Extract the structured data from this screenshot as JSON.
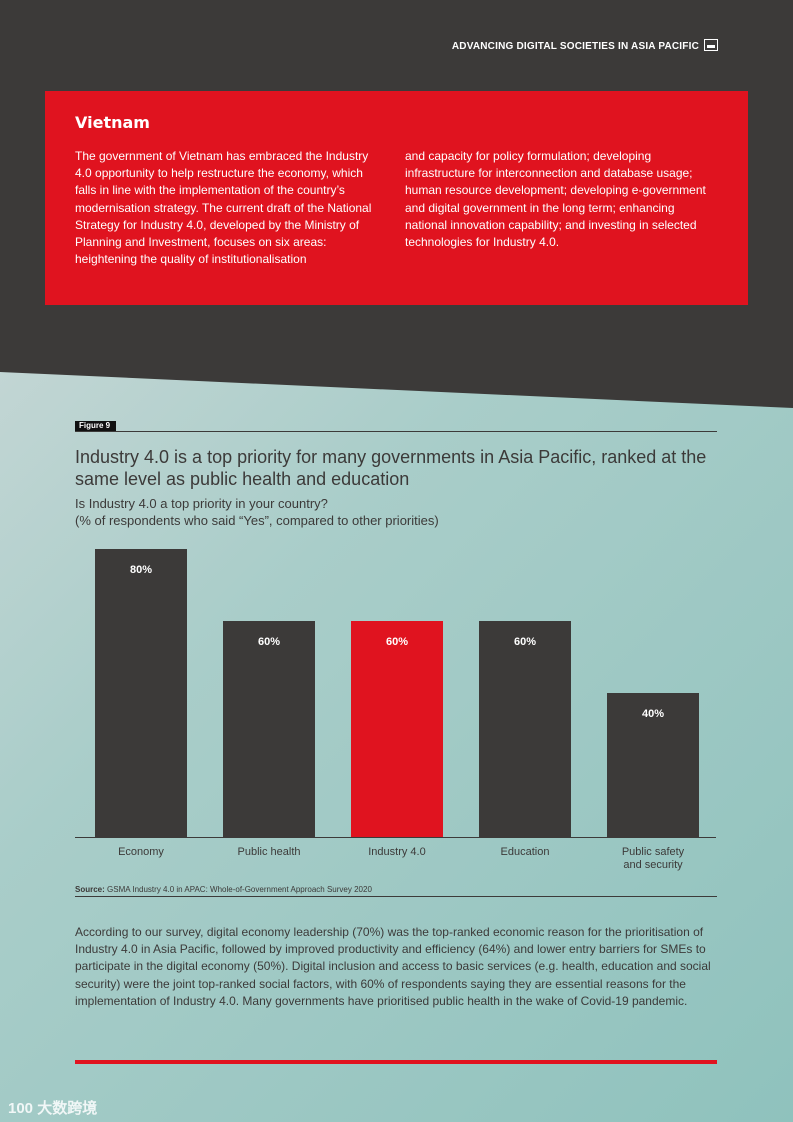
{
  "header": {
    "running_title": "ADVANCING DIGITAL SOCIETIES IN ASIA PACIFIC",
    "icon": "building-icon"
  },
  "callout": {
    "title": "Vietnam",
    "paragraph_left": "The government of Vietnam has embraced the Industry 4.0 opportunity to help restructure the economy, which falls in line with the implementation of the country’s modernisation strategy. The current draft of the National Strategy for Industry 4.0, developed by the Ministry of Planning and Investment, focuses on six areas: heightening the quality of institutionalisation",
    "paragraph_right": "and capacity for policy formulation; developing infrastructure for interconnection and database usage; human resource development; developing e-government and digital government in the long term; enhancing national innovation capability; and investing in selected technologies for Industry 4.0."
  },
  "figure": {
    "label": "Figure 9",
    "source_prefix": "Source:",
    "source_text": " GSMA Industry 4.0 in APAC: Whole-of-Government Approach Survey 2020"
  },
  "chart_data": {
    "type": "bar",
    "title": "Industry 4.0 is a top priority for many governments in Asia Pacific, ranked at the same level as public health and education",
    "subtitle_line1": "Is Industry 4.0 a top priority in your country?",
    "subtitle_line2": "(% of respondents who said “Yes”, compared to other priorities)",
    "categories": [
      "Economy",
      "Public health",
      "Industry 4.0",
      "Education",
      "Public safety and security"
    ],
    "category_lines": [
      [
        "Economy"
      ],
      [
        "Public health"
      ],
      [
        "Industry 4.0"
      ],
      [
        "Education"
      ],
      [
        "Public safety",
        "and security"
      ]
    ],
    "values": [
      80,
      60,
      60,
      60,
      40
    ],
    "data_labels": [
      "80%",
      "60%",
      "60%",
      "60%",
      "40%"
    ],
    "highlight_index": 2,
    "ylim": [
      0,
      80
    ],
    "xlabel": "",
    "ylabel": "",
    "colors": {
      "default": "#3c3a39",
      "highlight": "#e0131f",
      "label": "#ffffff",
      "axis": "#3c3a39"
    }
  },
  "body": {
    "paragraph": "According to our survey, digital economy leadership (70%) was the top-ranked economic reason for the prioritisation of Industry 4.0 in Asia Pacific, followed by improved productivity and efficiency (64%) and lower entry barriers for SMEs to participate in the digital economy (50%). Digital inclusion and access to basic services (e.g. health, education and social security) were the joint top-ranked social factors, with 60% of respondents saying they are essential reasons for the implementation of Industry 4.0. Many governments have prioritised public health in the wake of Covid-19 pandemic."
  },
  "watermark": {
    "text": "100 大数跨境"
  }
}
